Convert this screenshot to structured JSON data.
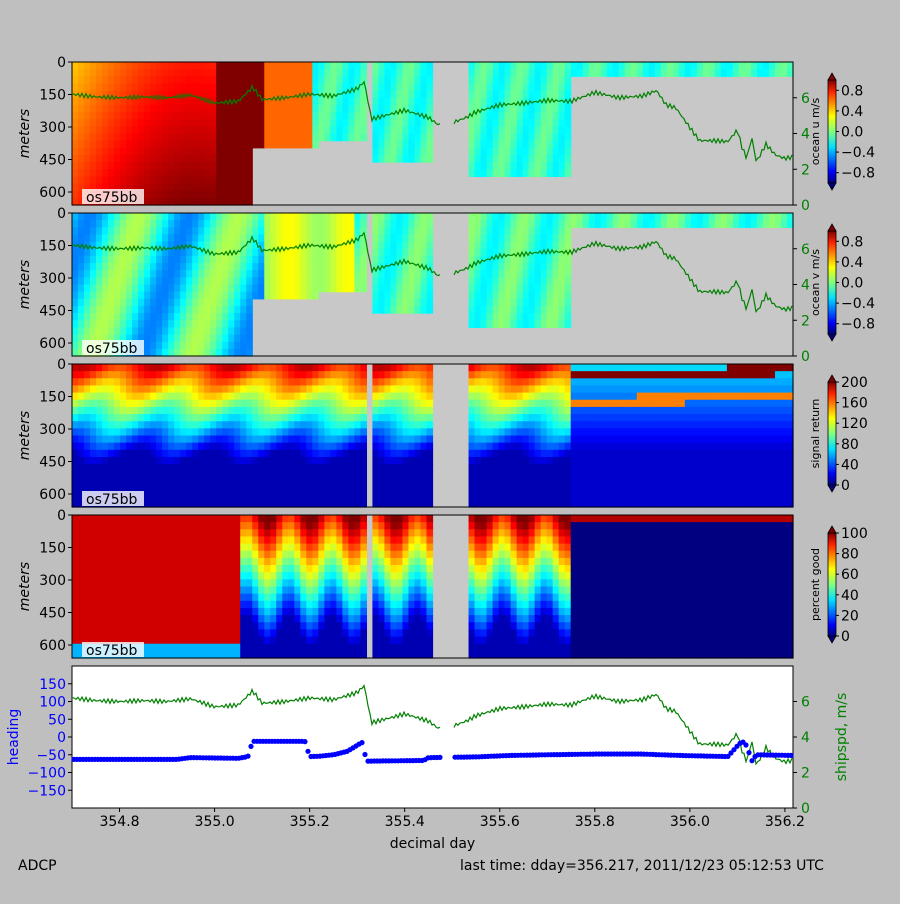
{
  "footer": {
    "left": "ADCP",
    "right": "last time: dday=356.217,  2011/12/23 05:12:53 UTC"
  },
  "colors": {
    "figure_bg": "#bfbfbf",
    "nodata": "#c8c8c8",
    "shipspd": "#008000",
    "heading": "#0000ff"
  },
  "chart_data": [
    {
      "type": "heatmap",
      "ylabel": "meters",
      "y_ticks": [
        "0",
        "150",
        "300",
        "450",
        "600"
      ],
      "tag": "os75bb",
      "colorbar": {
        "label": "ocean u m/s",
        "ticks": [
          "0.8",
          "0.4",
          "0.0",
          "−0.4",
          "−0.8"
        ],
        "range": [
          -1,
          1
        ],
        "cmap": "jet"
      },
      "right_axis": {
        "label": "",
        "ticks": [
          "6",
          "4",
          "2",
          "0"
        ],
        "range": [
          0,
          8
        ]
      },
      "overlay": "shipspd"
    },
    {
      "type": "heatmap",
      "ylabel": "meters",
      "y_ticks": [
        "0",
        "150",
        "300",
        "450",
        "600"
      ],
      "tag": "os75bb",
      "colorbar": {
        "label": "ocean v m/s",
        "ticks": [
          "0.8",
          "0.4",
          "0.0",
          "−0.4",
          "−0.8"
        ],
        "range": [
          -1,
          1
        ],
        "cmap": "jet"
      },
      "right_axis": {
        "label": "",
        "ticks": [
          "6",
          "4",
          "2",
          "0"
        ],
        "range": [
          0,
          8
        ]
      },
      "overlay": "shipspd"
    },
    {
      "type": "heatmap",
      "ylabel": "meters",
      "y_ticks": [
        "0",
        "150",
        "300",
        "450",
        "600"
      ],
      "tag": "os75bb",
      "colorbar": {
        "label": "signal return",
        "ticks": [
          "200",
          "160",
          "120",
          "80",
          "40",
          "0"
        ],
        "range": [
          0,
          200
        ],
        "cmap": "jet"
      }
    },
    {
      "type": "heatmap",
      "ylabel": "meters",
      "y_ticks": [
        "0",
        "150",
        "300",
        "450",
        "600"
      ],
      "tag": "os75bb",
      "colorbar": {
        "label": "percent good",
        "ticks": [
          "100",
          "80",
          "60",
          "40",
          "20",
          "0"
        ],
        "range": [
          0,
          100
        ],
        "cmap": "jet"
      }
    },
    {
      "type": "line",
      "ylabel": "heading",
      "y_ticks": [
        "150",
        "100",
        "50",
        "0",
        "−50",
        "−100",
        "−150"
      ],
      "ylim": [
        -200,
        200
      ],
      "right_axis": {
        "label": "shipspd, m/s",
        "ticks": [
          "6",
          "4",
          "2",
          "0"
        ],
        "range": [
          0,
          8
        ]
      },
      "xlabel": "decimal day",
      "x_ticks": [
        "354.8",
        "355.0",
        "355.2",
        "355.4",
        "355.6",
        "355.8",
        "356.0",
        "356.2"
      ],
      "xlim": [
        354.7,
        356.217
      ],
      "series": [
        {
          "name": "heading",
          "type": "scatter",
          "x": [
            354.7,
            354.92,
            354.95,
            355.05,
            355.07,
            355.08,
            355.19,
            355.2,
            355.22,
            355.25,
            355.28,
            355.31,
            355.32,
            355.44,
            355.45,
            355.55,
            355.62,
            355.7,
            355.8,
            355.9,
            355.98,
            356.08,
            356.1,
            356.11,
            356.12,
            356.13,
            356.14,
            356.217
          ],
          "y": [
            -63,
            -63,
            -58,
            -60,
            -55,
            -12,
            -12,
            -55,
            -54,
            -50,
            -40,
            -15,
            -68,
            -66,
            -58,
            -56,
            -52,
            -50,
            -48,
            -48,
            -52,
            -55,
            -25,
            -12,
            -25,
            -68,
            -50,
            -52
          ]
        },
        {
          "name": "shipspd",
          "type": "line",
          "x": [
            354.7,
            354.75,
            354.8,
            354.85,
            354.9,
            354.95,
            355.0,
            355.05,
            355.08,
            355.1,
            355.15,
            355.2,
            355.25,
            355.3,
            355.315,
            355.33,
            355.4,
            355.45,
            355.47,
            355.5,
            355.53,
            355.55,
            355.6,
            355.65,
            355.7,
            355.75,
            355.8,
            355.85,
            355.9,
            355.93,
            355.95,
            355.97,
            355.99,
            356.02,
            356.05,
            356.08,
            356.1,
            356.11,
            356.12,
            356.13,
            356.14,
            356.16,
            356.18,
            356.2,
            356.217
          ],
          "y": [
            6.2,
            6.05,
            6.0,
            6.05,
            6.0,
            6.15,
            5.7,
            5.8,
            6.6,
            5.9,
            6.0,
            6.2,
            6.1,
            6.5,
            6.9,
            4.8,
            5.3,
            4.9,
            4.5,
            4.6,
            4.9,
            5.2,
            5.6,
            5.7,
            5.85,
            5.8,
            6.3,
            6.0,
            6.1,
            6.4,
            5.6,
            5.45,
            4.7,
            3.6,
            3.6,
            3.55,
            4.2,
            3.2,
            2.6,
            3.8,
            2.4,
            3.4,
            2.8,
            2.6,
            2.7
          ]
        }
      ]
    }
  ]
}
